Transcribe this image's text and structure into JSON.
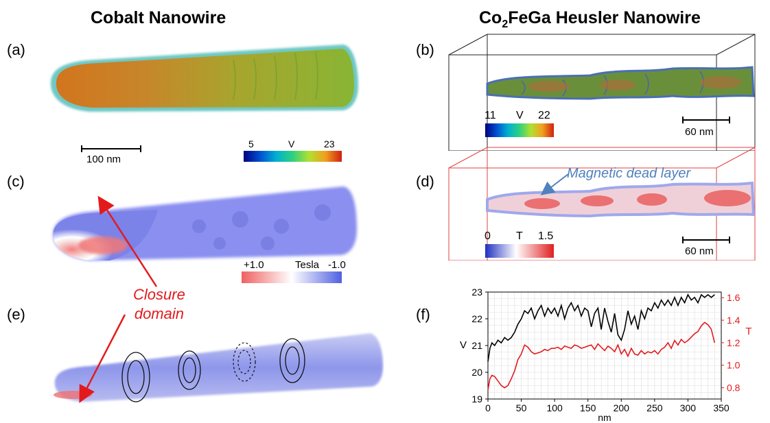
{
  "titles": {
    "left": "Cobalt Nanowire",
    "right_prefix": "Co",
    "right_sub": "2",
    "right_suffix": "FeGa Heusler Nanowire"
  },
  "panels": {
    "a": "(a)",
    "b": "(b)",
    "c": "(c)",
    "d": "(d)",
    "e": "(e)",
    "f": "(f)"
  },
  "panel_a": {
    "scalebar": "100 nm",
    "cb_min": "5",
    "cb_unit": "V",
    "cb_max": "23"
  },
  "panel_b": {
    "scalebar": "60 nm",
    "cb_min": "11",
    "cb_unit": "V",
    "cb_max": "22"
  },
  "panel_c": {
    "cb_min": "+1.0",
    "cb_unit": "Tesla",
    "cb_max": "-1.0"
  },
  "panel_d": {
    "annotation": "Magnetic dead layer",
    "scalebar": "60 nm",
    "cb_min": "0",
    "cb_unit": "T",
    "cb_max": "1.5"
  },
  "panel_e": {
    "annotation_line1": "Closure",
    "annotation_line2": "domain"
  },
  "colors": {
    "accent_red": "#e31a1c",
    "annotation_blue": "#4f81bd",
    "box_red": "#e04040"
  },
  "chart_data": {
    "type": "line",
    "xlabel": "nm",
    "ylabel": "V",
    "y2label": "T",
    "xlim": [
      0,
      350
    ],
    "ylim": [
      19,
      23
    ],
    "y2lim": [
      0.7,
      1.65
    ],
    "xticks": [
      0,
      50,
      100,
      150,
      200,
      250,
      300,
      350
    ],
    "yticks": [
      19,
      20,
      21,
      22,
      23
    ],
    "y2ticks": [
      0.8,
      1.0,
      1.2,
      1.4,
      1.6
    ],
    "grid": true,
    "series": [
      {
        "axis": "left",
        "color": "#000000",
        "x": [
          0,
          3,
          6,
          10,
          15,
          20,
          25,
          30,
          35,
          40,
          45,
          50,
          55,
          60,
          65,
          70,
          75,
          80,
          85,
          90,
          95,
          100,
          105,
          110,
          115,
          120,
          125,
          130,
          135,
          140,
          145,
          150,
          155,
          160,
          165,
          170,
          175,
          180,
          185,
          190,
          195,
          200,
          205,
          210,
          215,
          220,
          225,
          230,
          235,
          240,
          245,
          250,
          255,
          260,
          265,
          270,
          275,
          280,
          285,
          290,
          295,
          300,
          305,
          310,
          315,
          320,
          325,
          330,
          335,
          340
        ],
        "y": [
          20.4,
          20.9,
          21.1,
          21.0,
          21.2,
          21.1,
          21.3,
          21.2,
          21.3,
          21.5,
          21.8,
          22.0,
          22.3,
          22.2,
          22.4,
          22.0,
          22.3,
          22.5,
          22.1,
          22.4,
          22.2,
          22.4,
          22.1,
          22.5,
          22.0,
          22.4,
          22.6,
          22.3,
          22.5,
          22.1,
          22.4,
          22.3,
          21.7,
          22.2,
          22.4,
          21.6,
          22.4,
          21.9,
          21.5,
          22.2,
          21.4,
          21.2,
          21.6,
          22.3,
          21.8,
          22.1,
          21.6,
          22.3,
          22.0,
          22.4,
          22.3,
          22.6,
          22.4,
          22.7,
          22.5,
          22.7,
          22.5,
          22.8,
          22.5,
          22.8,
          22.6,
          22.9,
          22.7,
          22.8,
          22.6,
          22.9,
          22.8,
          22.9,
          22.8,
          22.9
        ]
      },
      {
        "axis": "right",
        "color": "#e31a1c",
        "x": [
          0,
          3,
          6,
          10,
          15,
          20,
          25,
          30,
          35,
          40,
          45,
          50,
          55,
          60,
          65,
          70,
          75,
          80,
          85,
          90,
          95,
          100,
          105,
          110,
          115,
          120,
          125,
          130,
          135,
          140,
          145,
          150,
          155,
          160,
          165,
          170,
          175,
          180,
          185,
          190,
          195,
          200,
          205,
          210,
          215,
          220,
          225,
          230,
          235,
          240,
          245,
          250,
          255,
          260,
          265,
          270,
          275,
          280,
          285,
          290,
          295,
          300,
          305,
          310,
          315,
          320,
          325,
          330,
          335,
          340
        ],
        "y": [
          0.78,
          0.88,
          0.91,
          0.9,
          0.86,
          0.82,
          0.8,
          0.82,
          0.88,
          0.95,
          1.05,
          1.1,
          1.18,
          1.16,
          1.12,
          1.1,
          1.11,
          1.12,
          1.14,
          1.13,
          1.15,
          1.15,
          1.16,
          1.14,
          1.17,
          1.16,
          1.15,
          1.18,
          1.17,
          1.15,
          1.16,
          1.17,
          1.18,
          1.14,
          1.19,
          1.16,
          1.13,
          1.17,
          1.15,
          1.12,
          1.18,
          1.1,
          1.14,
          1.08,
          1.15,
          1.1,
          1.09,
          1.13,
          1.1,
          1.12,
          1.11,
          1.13,
          1.1,
          1.14,
          1.16,
          1.2,
          1.15,
          1.22,
          1.18,
          1.23,
          1.2,
          1.22,
          1.25,
          1.28,
          1.3,
          1.35,
          1.38,
          1.36,
          1.32,
          1.2
        ]
      }
    ]
  }
}
